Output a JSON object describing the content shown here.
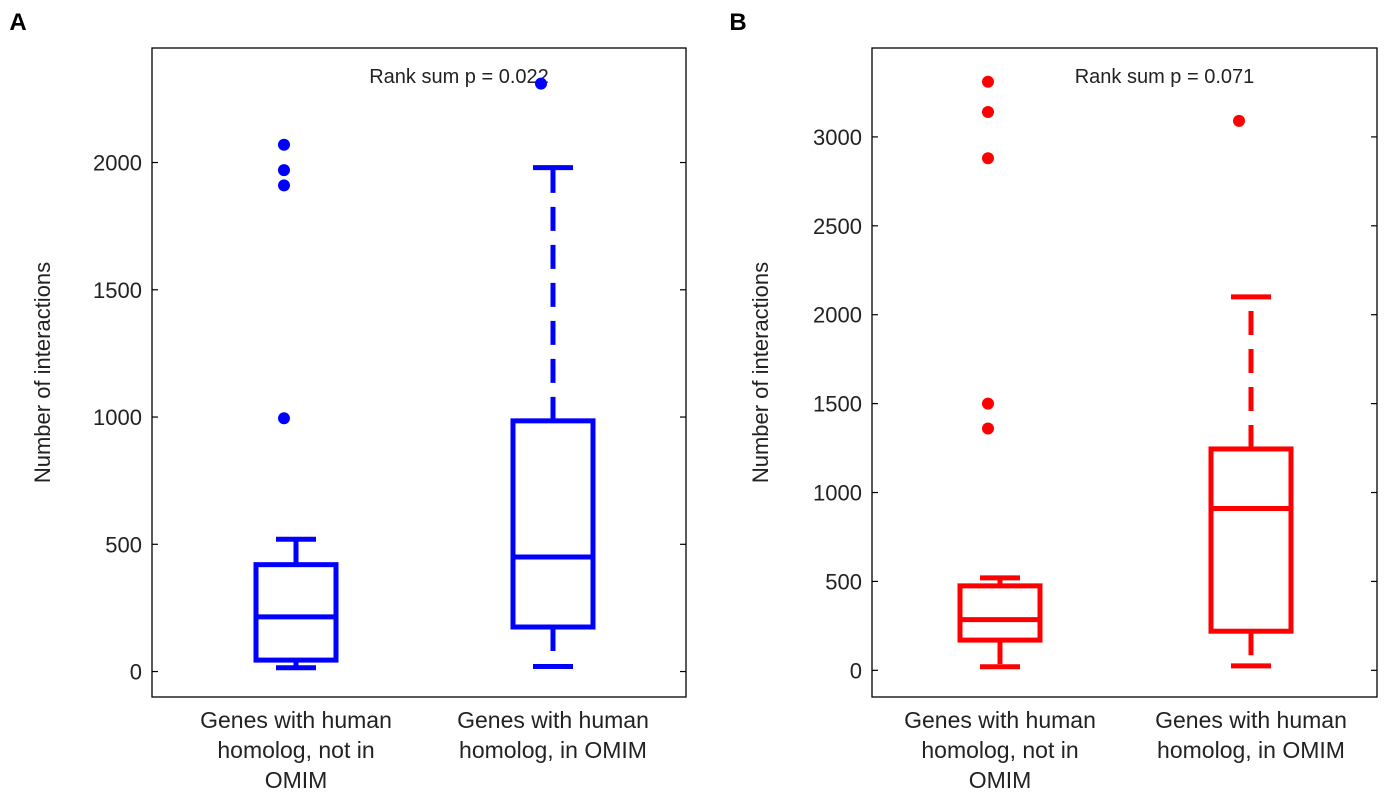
{
  "chart_data": [
    {
      "panel_label": "A",
      "type": "box",
      "ylabel": "Number of interactions",
      "yticks": [
        0,
        500,
        1000,
        1500,
        2000
      ],
      "ylim": [
        -100,
        2450
      ],
      "annotation": {
        "label": "Rank sum p =",
        "value": "0.022"
      },
      "color": "#0000ff",
      "categories": [
        [
          "Genes with human",
          "homolog, not in",
          "OMIM"
        ],
        [
          "Genes with human",
          "homolog, in OMIM"
        ]
      ],
      "boxes": [
        {
          "whisker_low": 15,
          "q1": 45,
          "median": 215,
          "q3": 420,
          "whisker_high": 520,
          "outliers": [
            995,
            1910,
            1970,
            2070
          ]
        },
        {
          "whisker_low": 20,
          "q1": 175,
          "median": 450,
          "q3": 985,
          "whisker_high": 1980,
          "outliers": [
            2310
          ]
        }
      ]
    },
    {
      "panel_label": "B",
      "type": "box",
      "ylabel": "Number of interactions",
      "yticks": [
        0,
        500,
        1000,
        1500,
        2000,
        2500,
        3000
      ],
      "ylim": [
        -150,
        3500
      ],
      "annotation": {
        "label": "Rank sum p =",
        "value": "0.071"
      },
      "color": "#ff0000",
      "categories": [
        [
          "Genes with human",
          "homolog, not in",
          "OMIM"
        ],
        [
          "Genes with human",
          "homolog, in OMIM"
        ]
      ],
      "boxes": [
        {
          "whisker_low": 20,
          "q1": 170,
          "median": 285,
          "q3": 475,
          "whisker_high": 520,
          "outliers": [
            1360,
            1500,
            2880,
            3140,
            3310
          ]
        },
        {
          "whisker_low": 25,
          "q1": 220,
          "median": 910,
          "q3": 1245,
          "whisker_high": 2100,
          "outliers": [
            3090
          ]
        }
      ]
    }
  ]
}
